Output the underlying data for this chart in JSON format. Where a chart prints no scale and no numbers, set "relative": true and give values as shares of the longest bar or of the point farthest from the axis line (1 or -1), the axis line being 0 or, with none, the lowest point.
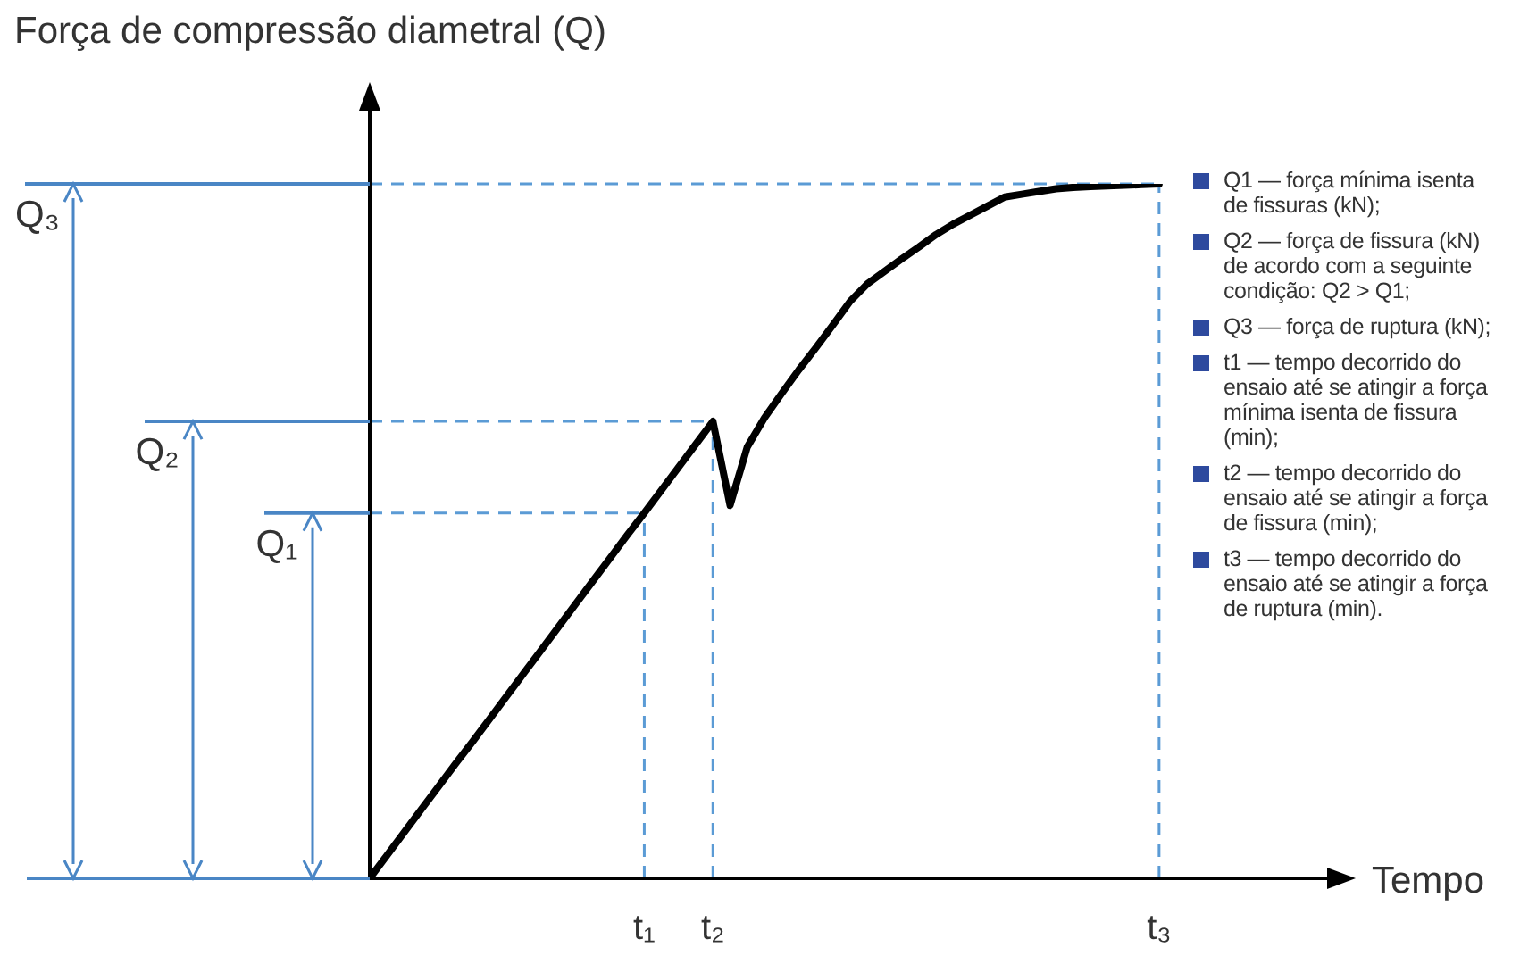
{
  "chart_data": {
    "type": "line",
    "relative": true,
    "title": "Força de compressão diametral (Q)",
    "xlabel": "Tempo",
    "categories": [
      null,
      null,
      null,
      null,
      null,
      null,
      null,
      null,
      null,
      null,
      null,
      null,
      null,
      null,
      null,
      null,
      "t₁",
      null,
      null,
      null,
      "t₂",
      null,
      null,
      null,
      null,
      null,
      null,
      null,
      null,
      null,
      null,
      null,
      null,
      null,
      null,
      null,
      null,
      null,
      null,
      null,
      null,
      null,
      null,
      null,
      null,
      null,
      "t₃",
      null,
      null,
      null,
      null,
      null,
      null,
      null,
      null,
      null,
      null
    ],
    "series": [
      {
        "color": "#000000",
        "values": [
          0,
          0.033,
          0.066,
          0.099,
          0.132,
          0.165,
          0.197,
          0.23,
          0.263,
          0.296,
          0.329,
          0.362,
          0.395,
          0.428,
          0.461,
          0.494,
          0.526,
          0.559,
          0.592,
          0.625,
          0.658,
          0.537,
          0.621,
          0.663,
          0.698,
          0.732,
          0.764,
          0.797,
          0.831,
          0.856,
          0.874,
          0.892,
          0.909,
          0.927,
          0.942,
          0.955,
          0.968,
          0.981,
          0.985,
          0.989,
          0.993,
          0.995,
          0.996,
          0.997,
          0.998,
          0.999,
          1,
          null,
          null,
          null,
          null,
          null,
          null,
          null,
          null,
          null,
          null
        ]
      }
    ],
    "marker": "none",
    "line_style": "solid",
    "ref_lines": [
      {
        "axis": "y",
        "value": 0.526,
        "label": "Q₁",
        "color": "#5b9bd5",
        "line_style": "dashed"
      },
      {
        "axis": "y",
        "value": 0.658,
        "label": "Q₂",
        "color": "#5b9bd5",
        "line_style": "dashed"
      },
      {
        "axis": "y",
        "value": 1,
        "label": "Q₃",
        "color": "#5b9bd5",
        "line_style": "dashed"
      },
      {
        "axis": "x",
        "value": "t₁",
        "color": "#5b9bd5",
        "line_style": "dashed"
      },
      {
        "axis": "x",
        "value": "t₂",
        "color": "#5b9bd5",
        "line_style": "dashed"
      },
      {
        "axis": "x",
        "value": "t₃",
        "color": "#5b9bd5",
        "line_style": "dashed"
      }
    ],
    "annotations": [
      "Q1 — força mínima isenta de fissuras (kN);",
      "Q2 — força de fissura (kN) de acordo com a seguinte condição: Q2 > Q1;",
      "Q3 — força de ruptura (kN);",
      "t1 — tempo decorrido do ensaio até se atingir a força mínima isenta de fissura (min);",
      "t2 — tempo decorrido do ensaio até se atingir a força de fissura (min);",
      "t3 — tempo decorrido do ensaio até se atingir a força de ruptura (min)."
    ]
  }
}
